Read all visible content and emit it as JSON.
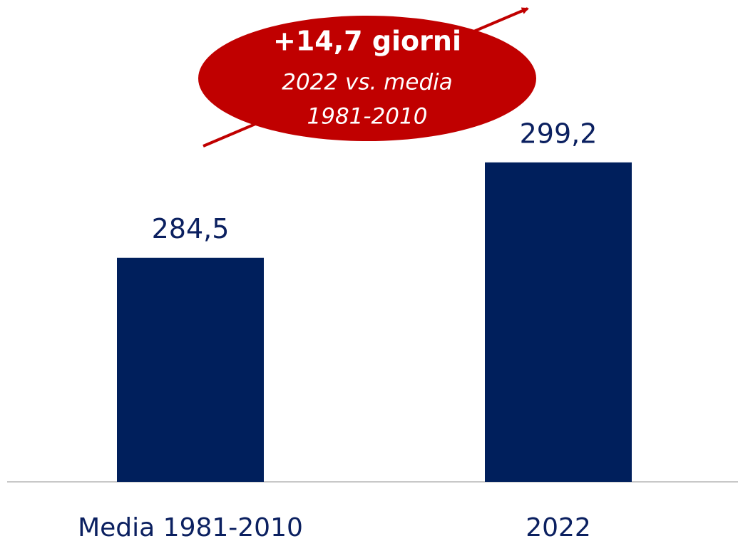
{
  "chart_data": {
    "type": "bar",
    "categories": [
      "Media 1981-2010",
      "2022"
    ],
    "values": [
      284.5,
      299.2
    ],
    "value_labels": [
      "284,5",
      "299,2"
    ],
    "color": "#001f5c",
    "ylim": [
      250,
      305
    ],
    "annotation": {
      "title": "+14,7 giorni",
      "lines": [
        "2022 vs. media",
        "1981-2010"
      ],
      "color": "#c00000"
    }
  }
}
